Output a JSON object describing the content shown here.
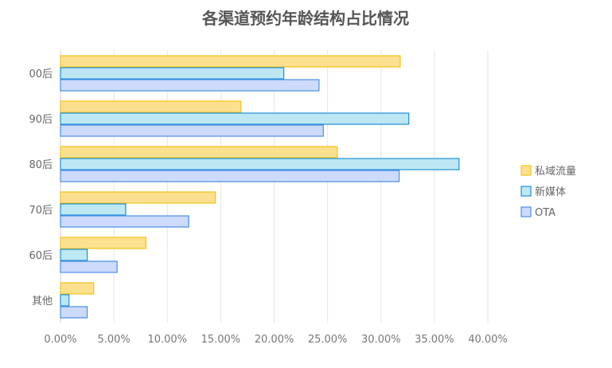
{
  "chart_data": {
    "type": "bar",
    "orientation": "horizontal",
    "title": "各渠道预约年龄结构占比情况",
    "categories": [
      "00后",
      "90后",
      "80后",
      "70后",
      "60后",
      "其他"
    ],
    "series": [
      {
        "name": "私域流量",
        "color": "#fbe08f",
        "border": "#f5c218",
        "values": [
          31.8,
          16.9,
          25.9,
          14.5,
          8.0,
          3.1
        ]
      },
      {
        "name": "新媒体",
        "color": "#bde8f3",
        "border": "#1e8fd6",
        "values": [
          20.9,
          32.6,
          37.3,
          6.1,
          2.5,
          0.8
        ]
      },
      {
        "name": "OTA",
        "color": "#cddafc",
        "border": "#4a8fe6",
        "values": [
          24.2,
          24.6,
          31.7,
          12.0,
          5.3,
          2.5
        ]
      }
    ],
    "xlim": [
      0,
      40
    ],
    "xticks": [
      "0.00%",
      "5.00%",
      "10.00%",
      "15.00%",
      "20.00%",
      "25.00%",
      "30.00%",
      "35.00%",
      "40.00%"
    ],
    "grid": true,
    "legend": "right"
  }
}
